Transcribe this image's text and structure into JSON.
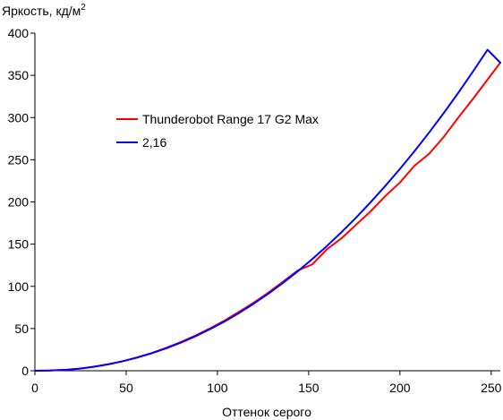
{
  "chart_data": {
    "type": "line",
    "ylabel": "Яркость, кд/м",
    "ylabel_superscript": "2",
    "xlabel": "Оттенок серого",
    "xlim": [
      0,
      255
    ],
    "ylim": [
      0,
      400
    ],
    "xticks": [
      0,
      50,
      100,
      150,
      200,
      250
    ],
    "yticks": [
      0,
      50,
      100,
      150,
      200,
      250,
      300,
      350,
      400
    ],
    "grid": false,
    "legend_position": "center-left",
    "series": [
      {
        "name": "Thunderobot Range 17 G2 Max",
        "color": "#ff0000",
        "x": [
          0,
          8,
          16,
          24,
          32,
          40,
          48,
          56,
          64,
          72,
          80,
          88,
          96,
          104,
          112,
          120,
          128,
          136,
          144,
          152,
          160,
          168,
          176,
          184,
          192,
          200,
          208,
          216,
          224,
          232,
          240,
          248,
          255
        ],
        "y": [
          0,
          0.2,
          1.0,
          2.4,
          4.6,
          7.6,
          11.2,
          15.8,
          21.0,
          27.2,
          34.0,
          41.8,
          50.2,
          59.6,
          70.0,
          80.8,
          92.8,
          105.6,
          118.8,
          126.0,
          144.0,
          157.0,
          173.0,
          189.0,
          207.0,
          223.0,
          243.0,
          257.0,
          277.0,
          300.0,
          322.0,
          345.0,
          365.0
        ]
      },
      {
        "name": "2,16",
        "color": "#0000ff",
        "x": [
          0,
          8,
          16,
          24,
          32,
          40,
          48,
          56,
          64,
          72,
          80,
          88,
          96,
          104,
          112,
          120,
          128,
          136,
          144,
          152,
          160,
          168,
          176,
          184,
          192,
          200,
          208,
          216,
          224,
          232,
          240,
          248,
          255
        ],
        "y": [
          0,
          0.2,
          1.0,
          2.4,
          4.6,
          7.6,
          11.2,
          15.6,
          20.7,
          26.6,
          33.3,
          40.9,
          49.3,
          58.5,
          68.6,
          79.6,
          91.4,
          104.2,
          117.8,
          132.4,
          147.8,
          164.2,
          181.5,
          199.8,
          219.0,
          239.1,
          260.2,
          282.3,
          305.3,
          329.4,
          354.4,
          380.3,
          365.0
        ]
      }
    ]
  }
}
